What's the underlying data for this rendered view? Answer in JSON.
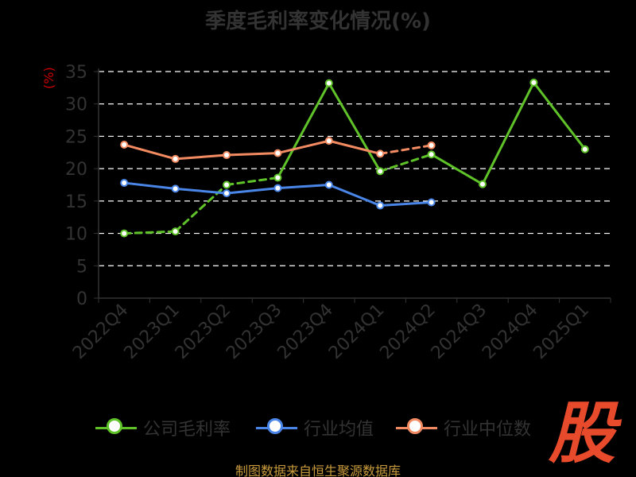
{
  "title": "季度毛利率变化情况(%)",
  "source": "制图数据来自恒生聚源数据库",
  "logo": "股",
  "legend": [
    {
      "name": "公司毛利率",
      "color": "#5ec228"
    },
    {
      "name": "行业均值",
      "color": "#4a86e8"
    },
    {
      "name": "行业中位数",
      "color": "#f28b62"
    }
  ],
  "chart_data": {
    "type": "line",
    "title": "季度毛利率变化情况(%)",
    "ylabel": "(%)",
    "xlabel": "",
    "ylim": [
      0,
      35
    ],
    "yticks": [
      0,
      5,
      10,
      15,
      20,
      25,
      30,
      35
    ],
    "grid": true,
    "legend_position": "bottom",
    "categories": [
      "2022Q4",
      "2023Q1",
      "2023Q2",
      "2023Q3",
      "2023Q4",
      "2024Q1",
      "2024Q2",
      "2024Q3",
      "2024Q4",
      "2025Q1"
    ],
    "series": [
      {
        "name": "公司毛利率",
        "color": "#5ec228",
        "values": [
          10.0,
          10.3,
          17.5,
          18.6,
          33.2,
          19.6,
          22.2,
          17.6,
          33.3,
          23.0
        ]
      },
      {
        "name": "行业均值",
        "color": "#4a86e8",
        "values": [
          17.8,
          16.9,
          16.2,
          17.0,
          17.5,
          14.3,
          14.8,
          null,
          null,
          null
        ]
      },
      {
        "name": "行业中位数",
        "color": "#f28b62",
        "values": [
          23.7,
          21.5,
          22.1,
          22.4,
          24.3,
          22.3,
          23.6,
          null,
          null,
          null
        ]
      }
    ],
    "dashed_segments": [
      {
        "series": "公司毛利率",
        "from": "2022Q4",
        "to": "2023Q3"
      },
      {
        "series": "公司毛利率",
        "from": "2024Q1",
        "to": "2024Q2"
      },
      {
        "series": "行业中位数",
        "from": "2024Q1",
        "to": "2024Q2"
      }
    ]
  }
}
